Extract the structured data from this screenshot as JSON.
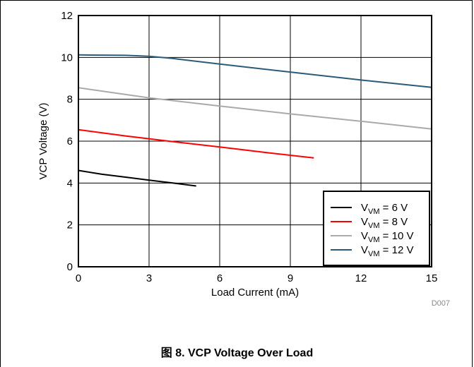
{
  "caption": "图 8. VCP Voltage Over Load",
  "figure_id": "D007",
  "colors": {
    "grid": "#000000",
    "frame": "#000000"
  },
  "chart_data": {
    "type": "line",
    "title": "",
    "xlabel": "Load Current (mA)",
    "ylabel": "VCP Voltage (V)",
    "xlim": [
      0,
      15
    ],
    "ylim": [
      0,
      12
    ],
    "xticks": [
      0,
      3,
      6,
      9,
      12,
      15
    ],
    "yticks": [
      0,
      2,
      4,
      6,
      8,
      10,
      12
    ],
    "grid": true,
    "legend_position": "bottom-right",
    "series": [
      {
        "name_base": "V",
        "name_sub": "VM",
        "name_rest": " = 6 V",
        "color": "#000000",
        "x": [
          0,
          1,
          2,
          3,
          4,
          5
        ],
        "y": [
          4.6,
          4.42,
          4.28,
          4.14,
          4.0,
          3.86
        ]
      },
      {
        "name_base": "V",
        "name_sub": "VM",
        "name_rest": " = 8 V",
        "color": "#ff0000",
        "x": [
          0,
          2,
          4,
          6,
          8,
          10
        ],
        "y": [
          6.55,
          6.25,
          5.98,
          5.72,
          5.45,
          5.2
        ]
      },
      {
        "name_base": "V",
        "name_sub": "VM",
        "name_rest": " = 10 V",
        "color": "#aaaaaa",
        "x": [
          0,
          3,
          6,
          9,
          12,
          15
        ],
        "y": [
          8.55,
          8.07,
          7.68,
          7.3,
          6.95,
          6.58
        ]
      },
      {
        "name_base": "V",
        "name_sub": "VM",
        "name_rest": " = 12 V",
        "color": "#2b5b7a",
        "x": [
          0,
          1,
          2,
          3,
          4,
          6,
          9,
          12,
          15
        ],
        "y": [
          10.12,
          10.11,
          10.1,
          10.05,
          9.95,
          9.68,
          9.3,
          8.92,
          8.57
        ]
      }
    ]
  }
}
